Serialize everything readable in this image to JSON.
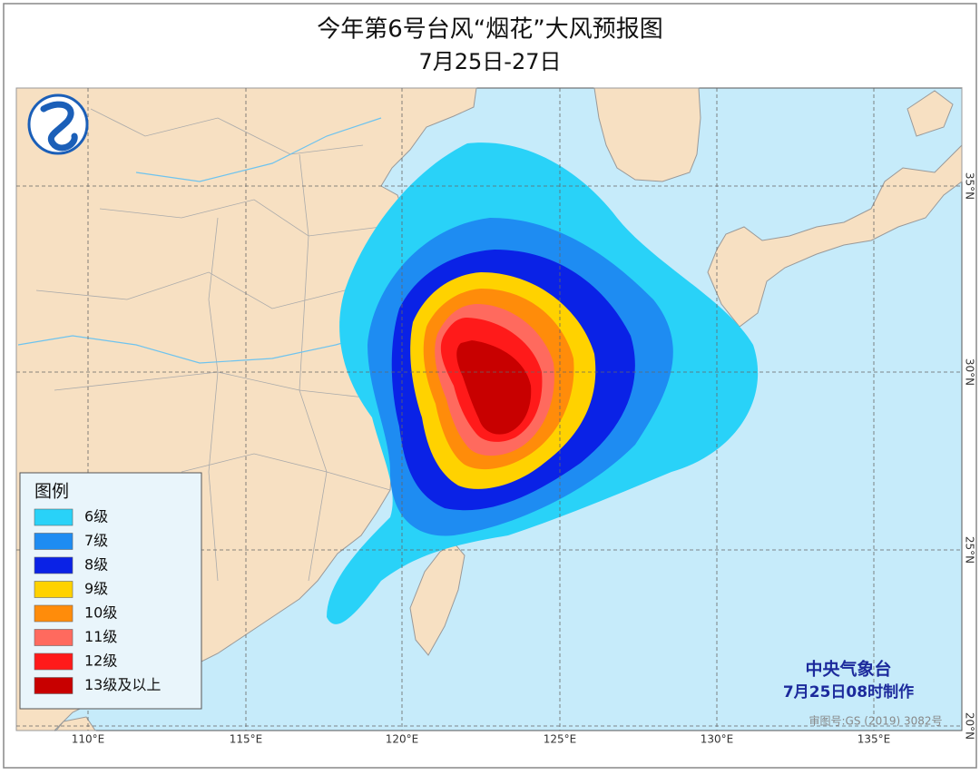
{
  "header": {
    "title": "今年第6号台风“烟花”大风预报图",
    "subtitle": "7月25日-27日"
  },
  "legend": {
    "title": "图例",
    "items": [
      {
        "label": "6级",
        "color": "#29d2f8"
      },
      {
        "label": "7级",
        "color": "#1e8cf2"
      },
      {
        "label": "8级",
        "color": "#0a22e6"
      },
      {
        "label": "9级",
        "color": "#ffd200"
      },
      {
        "label": "10级",
        "color": "#ff8c0a"
      },
      {
        "label": "11级",
        "color": "#ff6a5e"
      },
      {
        "label": "12级",
        "color": "#ff1a1a"
      },
      {
        "label": "13级及以上",
        "color": "#c80000"
      }
    ]
  },
  "agency": {
    "name": "中央气象台",
    "note": "7月25日08时制作"
  },
  "map": {
    "approval": "审图号:GS (2019) 3082号",
    "lon_labels": [
      "110°E",
      "115°E",
      "120°E",
      "125°E",
      "130°E",
      "135°E"
    ],
    "lat_labels": [
      "35°N",
      "30°N",
      "25°N",
      "20°N"
    ]
  }
}
